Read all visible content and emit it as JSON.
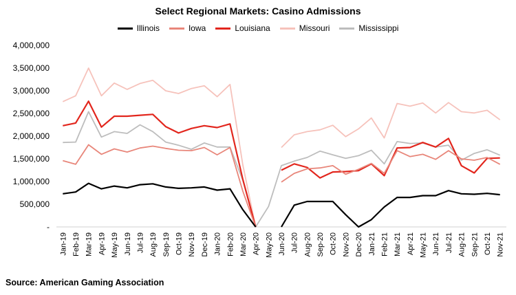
{
  "chart_data": {
    "type": "line",
    "title": "Select Regional Markets: Casino Admissions",
    "xlabel": "",
    "ylabel": "",
    "ylim": [
      0,
      4000000
    ],
    "yticks": [
      {
        "value": 0,
        "label": "-"
      },
      {
        "value": 500000,
        "label": "500,000"
      },
      {
        "value": 1000000,
        "label": "1,000,000"
      },
      {
        "value": 1500000,
        "label": "1,500,000"
      },
      {
        "value": 2000000,
        "label": "2,000,000"
      },
      {
        "value": 2500000,
        "label": "2,500,000"
      },
      {
        "value": 3000000,
        "label": "3,000,000"
      },
      {
        "value": 3500000,
        "label": "3,500,000"
      },
      {
        "value": 4000000,
        "label": "4,000,000"
      }
    ],
    "grid": false,
    "legend_position": "top",
    "categories": [
      "Jan-19",
      "Feb-19",
      "Mar-19",
      "Apr-19",
      "May-19",
      "Jun-19",
      "Jul-19",
      "Aug-19",
      "Sep-19",
      "Oct-19",
      "Nov-19",
      "Dec-19",
      "Jan-20",
      "Feb-20",
      "Mar-20",
      "Apr-20",
      "May-20",
      "Jun-20",
      "Jul-20",
      "Aug-20",
      "Sep-20",
      "Oct-20",
      "Nov-20",
      "Dec-20",
      "Jan-21",
      "Feb-21",
      "Mar-21",
      "Apr-21",
      "May-21",
      "Jun-21",
      "Jul-21",
      "Aug-21",
      "Sep-21",
      "Oct-21",
      "Nov-21"
    ],
    "series": [
      {
        "name": "Illinois",
        "color": "#000000",
        "width": 2.2,
        "values": [
          730000,
          770000,
          960000,
          840000,
          900000,
          860000,
          930000,
          950000,
          880000,
          850000,
          860000,
          880000,
          810000,
          840000,
          380000,
          0,
          null,
          0,
          480000,
          560000,
          560000,
          560000,
          270000,
          0,
          160000,
          440000,
          650000,
          650000,
          690000,
          690000,
          800000,
          730000,
          720000,
          740000,
          710000
        ]
      },
      {
        "name": "Iowa",
        "color": "#e8867a",
        "width": 1.8,
        "values": [
          1460000,
          1380000,
          1810000,
          1600000,
          1720000,
          1650000,
          1740000,
          1780000,
          1730000,
          1690000,
          1680000,
          1750000,
          1590000,
          1750000,
          790000,
          0,
          null,
          990000,
          1180000,
          1280000,
          1300000,
          1350000,
          1160000,
          1270000,
          1400000,
          1180000,
          1680000,
          1550000,
          1600000,
          1490000,
          1680000,
          1500000,
          1470000,
          1530000,
          1380000
        ]
      },
      {
        "name": "Louisiana",
        "color": "#e2261d",
        "width": 2.2,
        "values": [
          2230000,
          2290000,
          2770000,
          2200000,
          2440000,
          2440000,
          2460000,
          2480000,
          2210000,
          2070000,
          2170000,
          2230000,
          2190000,
          2270000,
          1050000,
          0,
          null,
          1250000,
          1390000,
          1310000,
          1080000,
          1210000,
          1220000,
          1240000,
          1390000,
          1130000,
          1740000,
          1750000,
          1860000,
          1760000,
          1950000,
          1350000,
          1190000,
          1510000,
          1520000
        ]
      },
      {
        "name": "Missouri",
        "color": "#f6c2bb",
        "width": 1.8,
        "values": [
          2760000,
          2890000,
          3500000,
          2890000,
          3170000,
          3030000,
          3160000,
          3230000,
          3000000,
          2940000,
          3050000,
          3110000,
          2870000,
          3140000,
          1370000,
          0,
          null,
          1750000,
          2030000,
          2100000,
          2140000,
          2240000,
          1990000,
          2160000,
          2400000,
          1960000,
          2720000,
          2660000,
          2730000,
          2510000,
          2740000,
          2540000,
          2510000,
          2570000,
          2360000
        ]
      },
      {
        "name": "Mississippi",
        "color": "#bdbdbd",
        "width": 1.8,
        "values": [
          1860000,
          1870000,
          2540000,
          1980000,
          2100000,
          2060000,
          2250000,
          2100000,
          1870000,
          1800000,
          1710000,
          1850000,
          1760000,
          1760000,
          1030000,
          0,
          450000,
          1350000,
          1450000,
          1530000,
          1670000,
          1590000,
          1510000,
          1570000,
          1690000,
          1390000,
          1880000,
          1840000,
          1850000,
          1760000,
          1800000,
          1470000,
          1620000,
          1700000,
          1580000
        ]
      }
    ]
  },
  "source": "Source: American Gaming Association"
}
